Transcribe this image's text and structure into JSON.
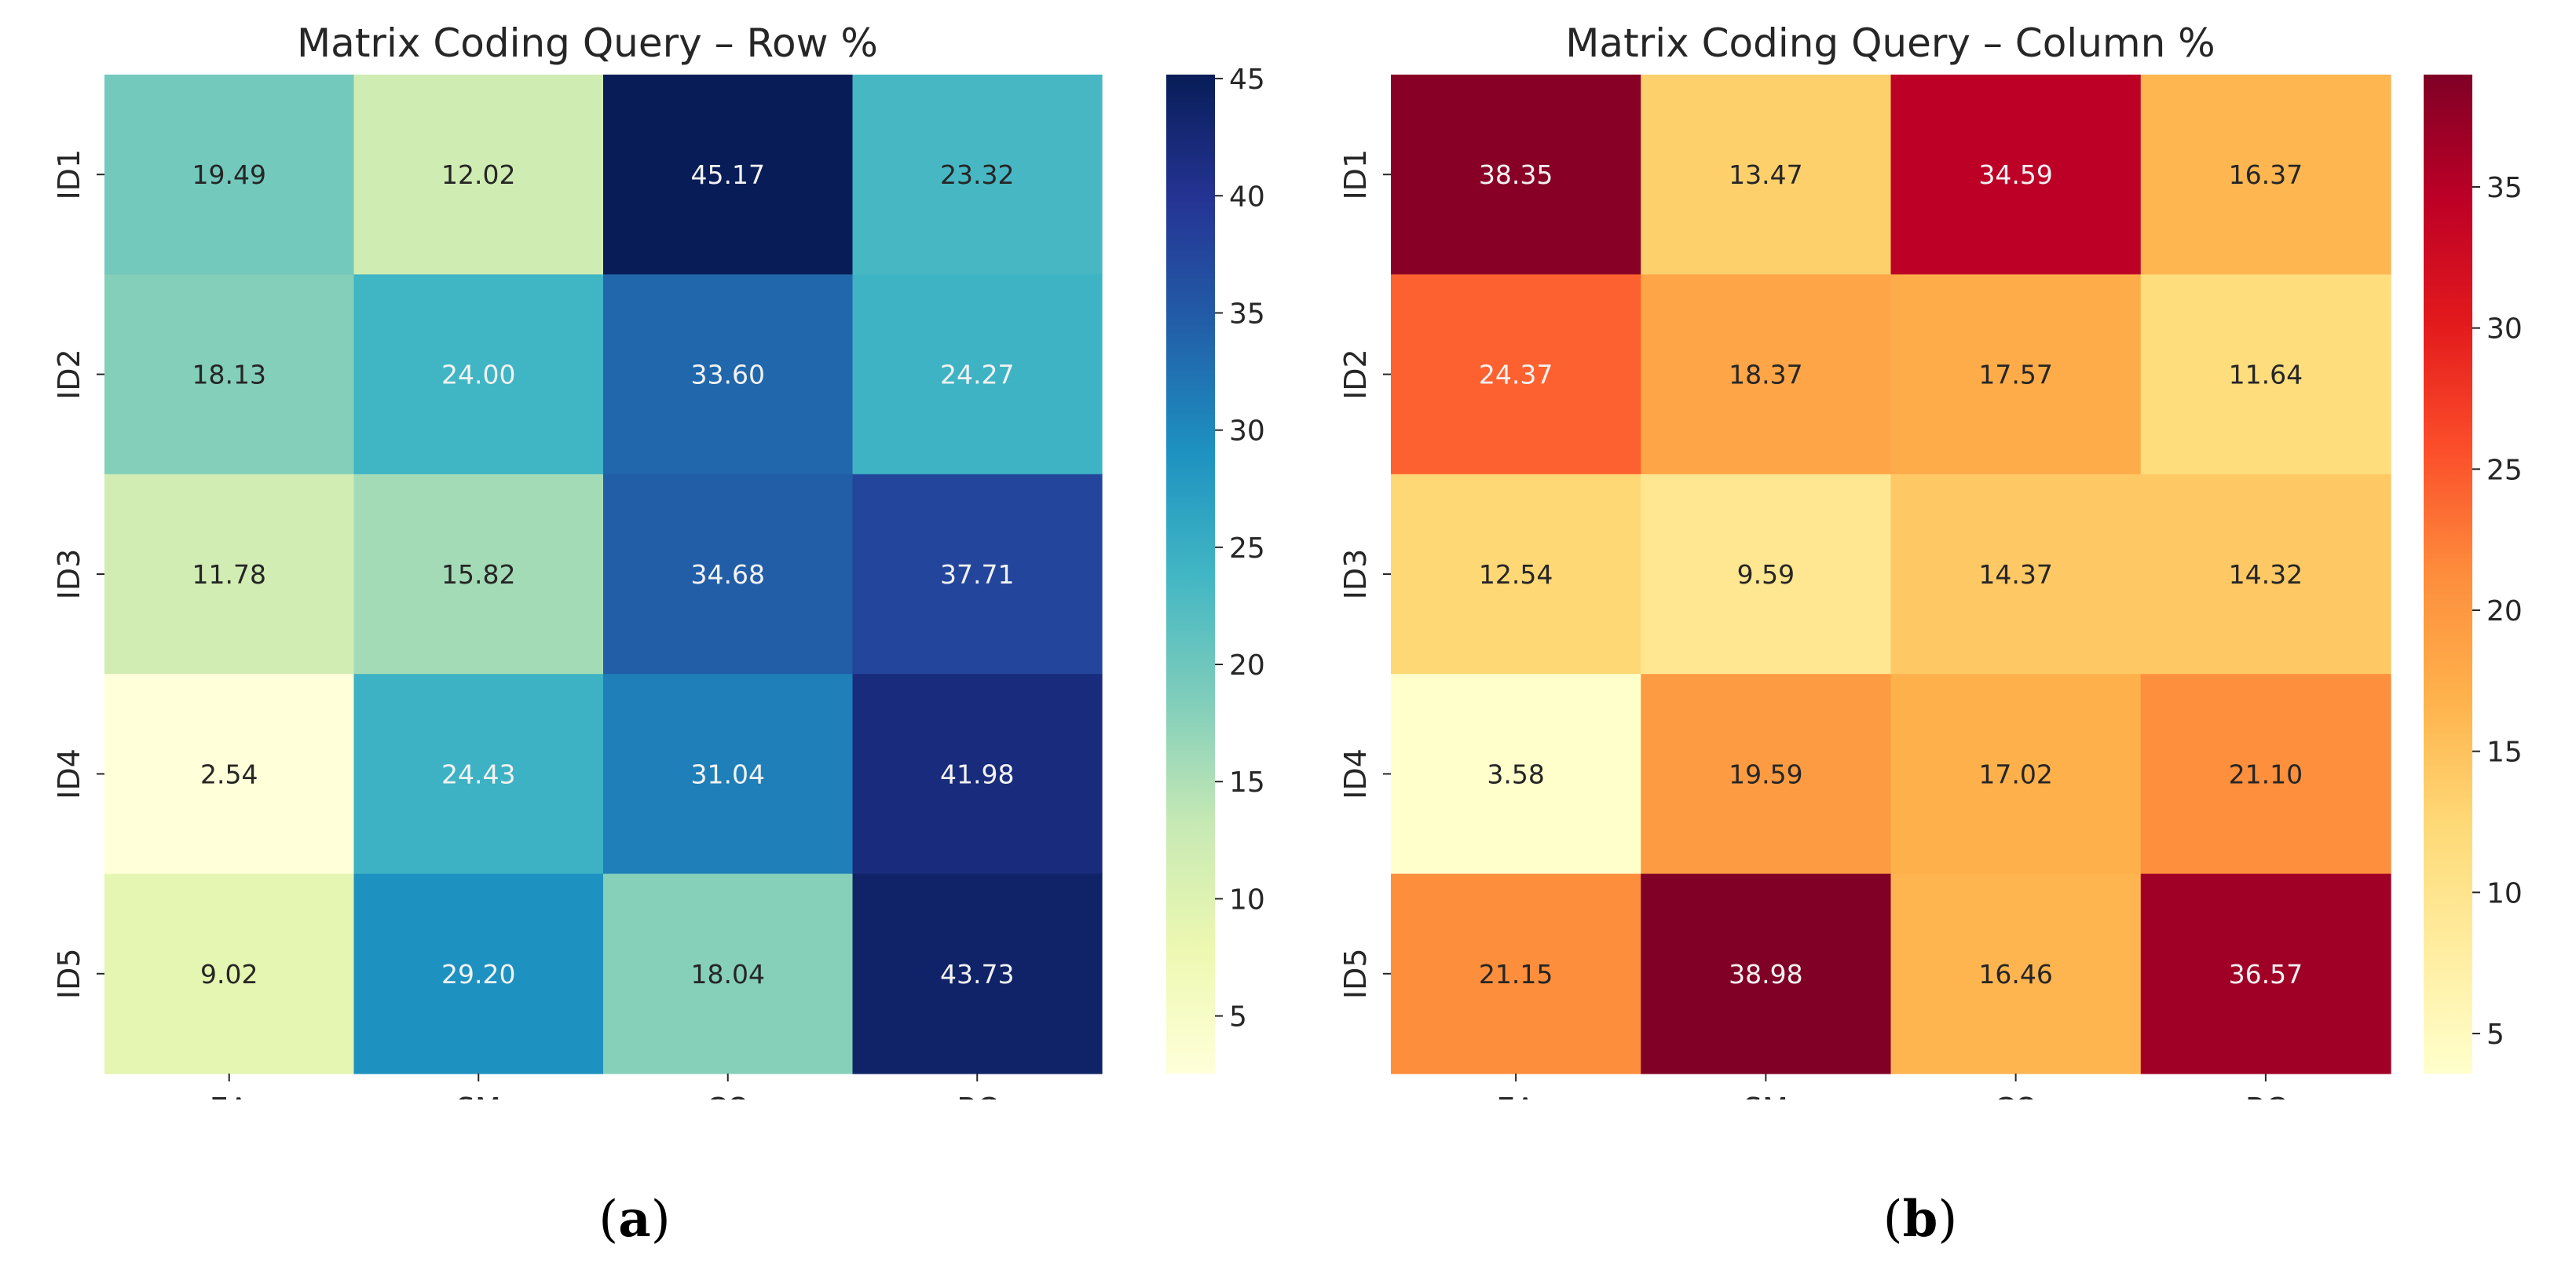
{
  "chart_data": [
    {
      "type": "heatmap",
      "title": "Matrix Coding Query – Row %",
      "caption": "a",
      "colormap": "YlGnBu",
      "x_categories": [
        "EA",
        "SM",
        "CO",
        "BC"
      ],
      "y_categories": [
        "ID1",
        "ID2",
        "ID3",
        "ID4",
        "ID5"
      ],
      "values": [
        [
          19.49,
          12.02,
          45.17,
          23.32
        ],
        [
          18.13,
          24.0,
          33.6,
          24.27
        ],
        [
          11.78,
          15.82,
          34.68,
          37.71
        ],
        [
          2.54,
          24.43,
          31.04,
          41.98
        ],
        [
          9.02,
          29.2,
          18.04,
          43.73
        ]
      ],
      "colorbar": {
        "range": [
          2.54,
          45.17
        ],
        "ticks": [
          5,
          10,
          15,
          20,
          25,
          30,
          35,
          40,
          45
        ]
      }
    },
    {
      "type": "heatmap",
      "title": "Matrix Coding Query – Column %",
      "caption": "b",
      "colormap": "YlOrRd",
      "x_categories": [
        "EA",
        "SM",
        "CO",
        "BC"
      ],
      "y_categories": [
        "ID1",
        "ID2",
        "ID3",
        "ID4",
        "ID5"
      ],
      "values": [
        [
          38.35,
          13.47,
          34.59,
          16.37
        ],
        [
          24.37,
          18.37,
          17.57,
          11.64
        ],
        [
          12.54,
          9.59,
          14.37,
          14.32
        ],
        [
          3.58,
          19.59,
          17.02,
          21.1
        ],
        [
          21.15,
          38.98,
          16.46,
          36.57
        ]
      ],
      "colorbar": {
        "range": [
          3.58,
          38.98
        ],
        "ticks": [
          5,
          10,
          15,
          20,
          25,
          30,
          35
        ]
      }
    }
  ],
  "colormaps": {
    "YlGnBu": [
      "#ffffd9",
      "#edf8b1",
      "#c7e9b4",
      "#7fcdbb",
      "#41b6c4",
      "#1d91c0",
      "#225ea8",
      "#253494",
      "#081d58"
    ],
    "YlOrRd": [
      "#ffffcc",
      "#ffeda0",
      "#fed976",
      "#feb24c",
      "#fd8d3c",
      "#fc4e2a",
      "#e31a1c",
      "#bd0026",
      "#800026"
    ]
  }
}
